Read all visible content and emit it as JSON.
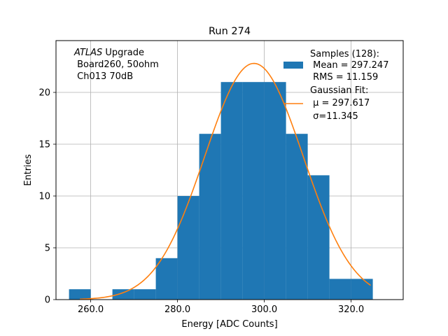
{
  "chart_data": {
    "type": "bar",
    "title": "Run 274",
    "xlabel": "Energy [ADC Counts]",
    "ylabel": "Entries",
    "xlim": [
      252,
      332
    ],
    "ylim": [
      0,
      25
    ],
    "grid": true,
    "xticks": [
      260,
      280,
      300,
      320
    ],
    "xtick_labels": [
      "260.0",
      "280.0",
      "300.0",
      "320.0"
    ],
    "yticks": [
      0,
      5,
      10,
      15,
      20
    ],
    "ytick_labels": [
      "0",
      "5",
      "10",
      "15",
      "20"
    ],
    "bins": [
      {
        "x0": 255,
        "x1": 260,
        "count": 1
      },
      {
        "x0": 260,
        "x1": 265,
        "count": 0
      },
      {
        "x0": 265,
        "x1": 270,
        "count": 1
      },
      {
        "x0": 270,
        "x1": 275,
        "count": 1
      },
      {
        "x0": 275,
        "x1": 280,
        "count": 4
      },
      {
        "x0": 280,
        "x1": 285,
        "count": 10
      },
      {
        "x0": 285,
        "x1": 290,
        "count": 16
      },
      {
        "x0": 290,
        "x1": 295,
        "count": 21
      },
      {
        "x0": 295,
        "x1": 300,
        "count": 21
      },
      {
        "x0": 300,
        "x1": 305,
        "count": 21
      },
      {
        "x0": 305,
        "x1": 310,
        "count": 16
      },
      {
        "x0": 310,
        "x1": 315,
        "count": 12
      },
      {
        "x0": 315,
        "x1": 320,
        "count": 2
      },
      {
        "x0": 320,
        "x1": 325,
        "count": 2
      }
    ],
    "gaussian_fit": {
      "mu": 297.617,
      "sigma": 11.345,
      "amplitude": 22.8,
      "x_range": [
        257.5,
        324.5
      ]
    },
    "colors": {
      "histogram": "#1f77b4",
      "fit": "#ff7f0e",
      "grid": "#b0b0b0"
    },
    "annotation": {
      "line1_italic": "ATLAS",
      "line1_rest": " Upgrade",
      "line2": " Board260, 50ohm",
      "line3": " Ch013 70dB"
    },
    "legend": {
      "position": "upper right",
      "samples_label": [
        "Samples (128):",
        " Mean = 297.247",
        " RMS = 11.159"
      ],
      "fit_label": [
        "Gaussian Fit:",
        " μ = 297.617",
        " σ=11.345"
      ]
    }
  }
}
